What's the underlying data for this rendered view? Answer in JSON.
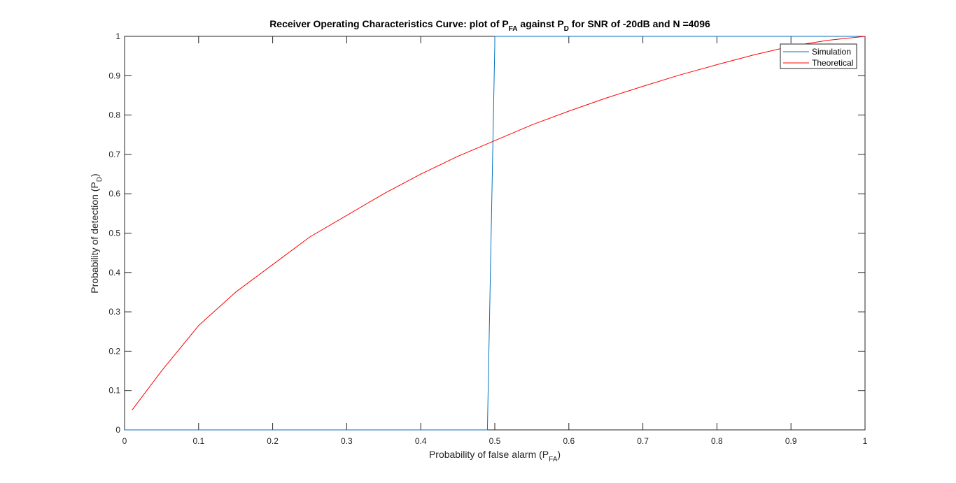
{
  "chart_data": {
    "type": "line",
    "title": {
      "prefix": "Receiver Operating Characteristics Curve: plot of P",
      "sub1": "FA",
      "mid": " against P",
      "sub2": "D",
      "suffix": " for SNR of -20dB and N =4096"
    },
    "xlabel": {
      "text": "Probability of false alarm (P",
      "sub": "FA",
      "close": ")"
    },
    "ylabel": {
      "text": "Probability of detection (P",
      "sub": "D",
      "close": ")"
    },
    "xlim": [
      0,
      1
    ],
    "ylim": [
      0,
      1
    ],
    "xticks": [
      "0",
      "0.1",
      "0.2",
      "0.3",
      "0.4",
      "0.5",
      "0.6",
      "0.7",
      "0.8",
      "0.9",
      "1"
    ],
    "yticks": [
      "0",
      "0.1",
      "0.2",
      "0.3",
      "0.4",
      "0.5",
      "0.6",
      "0.7",
      "0.8",
      "0.9",
      "1"
    ],
    "grid": false,
    "legend_position": "top-right",
    "series": [
      {
        "name": "Simulation",
        "color": "#0072BD",
        "x": [
          0.0,
          0.49,
          0.5,
          0.5,
          1.0
        ],
        "y": [
          0.0,
          0.0,
          0.98,
          1.0,
          1.0
        ]
      },
      {
        "name": "Theoretical",
        "color": "#FF0000",
        "x": [
          0.01,
          0.05,
          0.1,
          0.15,
          0.2,
          0.25,
          0.3,
          0.35,
          0.4,
          0.45,
          0.5,
          0.55,
          0.6,
          0.65,
          0.7,
          0.75,
          0.8,
          0.85,
          0.9,
          0.95,
          1.0
        ],
        "y": [
          0.05,
          0.15,
          0.265,
          0.35,
          0.42,
          0.49,
          0.545,
          0.6,
          0.65,
          0.695,
          0.735,
          0.775,
          0.81,
          0.843,
          0.873,
          0.902,
          0.928,
          0.953,
          0.975,
          0.99,
          1.0
        ]
      }
    ]
  }
}
